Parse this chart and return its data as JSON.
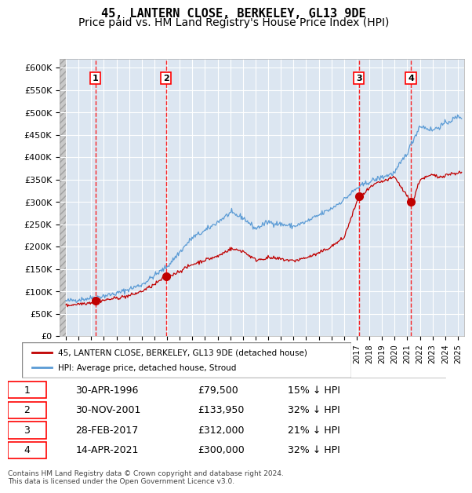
{
  "title": "45, LANTERN CLOSE, BERKELEY, GL13 9DE",
  "subtitle": "Price paid vs. HM Land Registry's House Price Index (HPI)",
  "ylabel": "",
  "ylim": [
    0,
    620000
  ],
  "yticks": [
    0,
    50000,
    100000,
    150000,
    200000,
    250000,
    300000,
    350000,
    400000,
    450000,
    500000,
    550000,
    600000
  ],
  "xlim_start": 1993.5,
  "xlim_end": 2025.5,
  "sale_dates": [
    1996.33,
    2001.92,
    2017.17,
    2021.29
  ],
  "sale_prices": [
    79500,
    133950,
    312000,
    300000
  ],
  "sale_labels": [
    "1",
    "2",
    "3",
    "4"
  ],
  "legend_red": "45, LANTERN CLOSE, BERKELEY, GL13 9DE (detached house)",
  "legend_blue": "HPI: Average price, detached house, Stroud",
  "table_rows": [
    [
      "1",
      "30-APR-1996",
      "£79,500",
      "15% ↓ HPI"
    ],
    [
      "2",
      "30-NOV-2001",
      "£133,950",
      "32% ↓ HPI"
    ],
    [
      "3",
      "28-FEB-2017",
      "£312,000",
      "21% ↓ HPI"
    ],
    [
      "4",
      "14-APR-2021",
      "£300,000",
      "32% ↓ HPI"
    ]
  ],
  "footer": "Contains HM Land Registry data © Crown copyright and database right 2024.\nThis data is licensed under the Open Government Licence v3.0.",
  "hpi_color": "#5b9bd5",
  "price_color": "#c00000",
  "sale_dot_color": "#c00000",
  "vline_color": "#ff0000",
  "bg_hatch_color": "#d0d0d0",
  "chart_bg": "#dce6f1",
  "grid_color": "#ffffff",
  "title_fontsize": 11,
  "subtitle_fontsize": 10
}
